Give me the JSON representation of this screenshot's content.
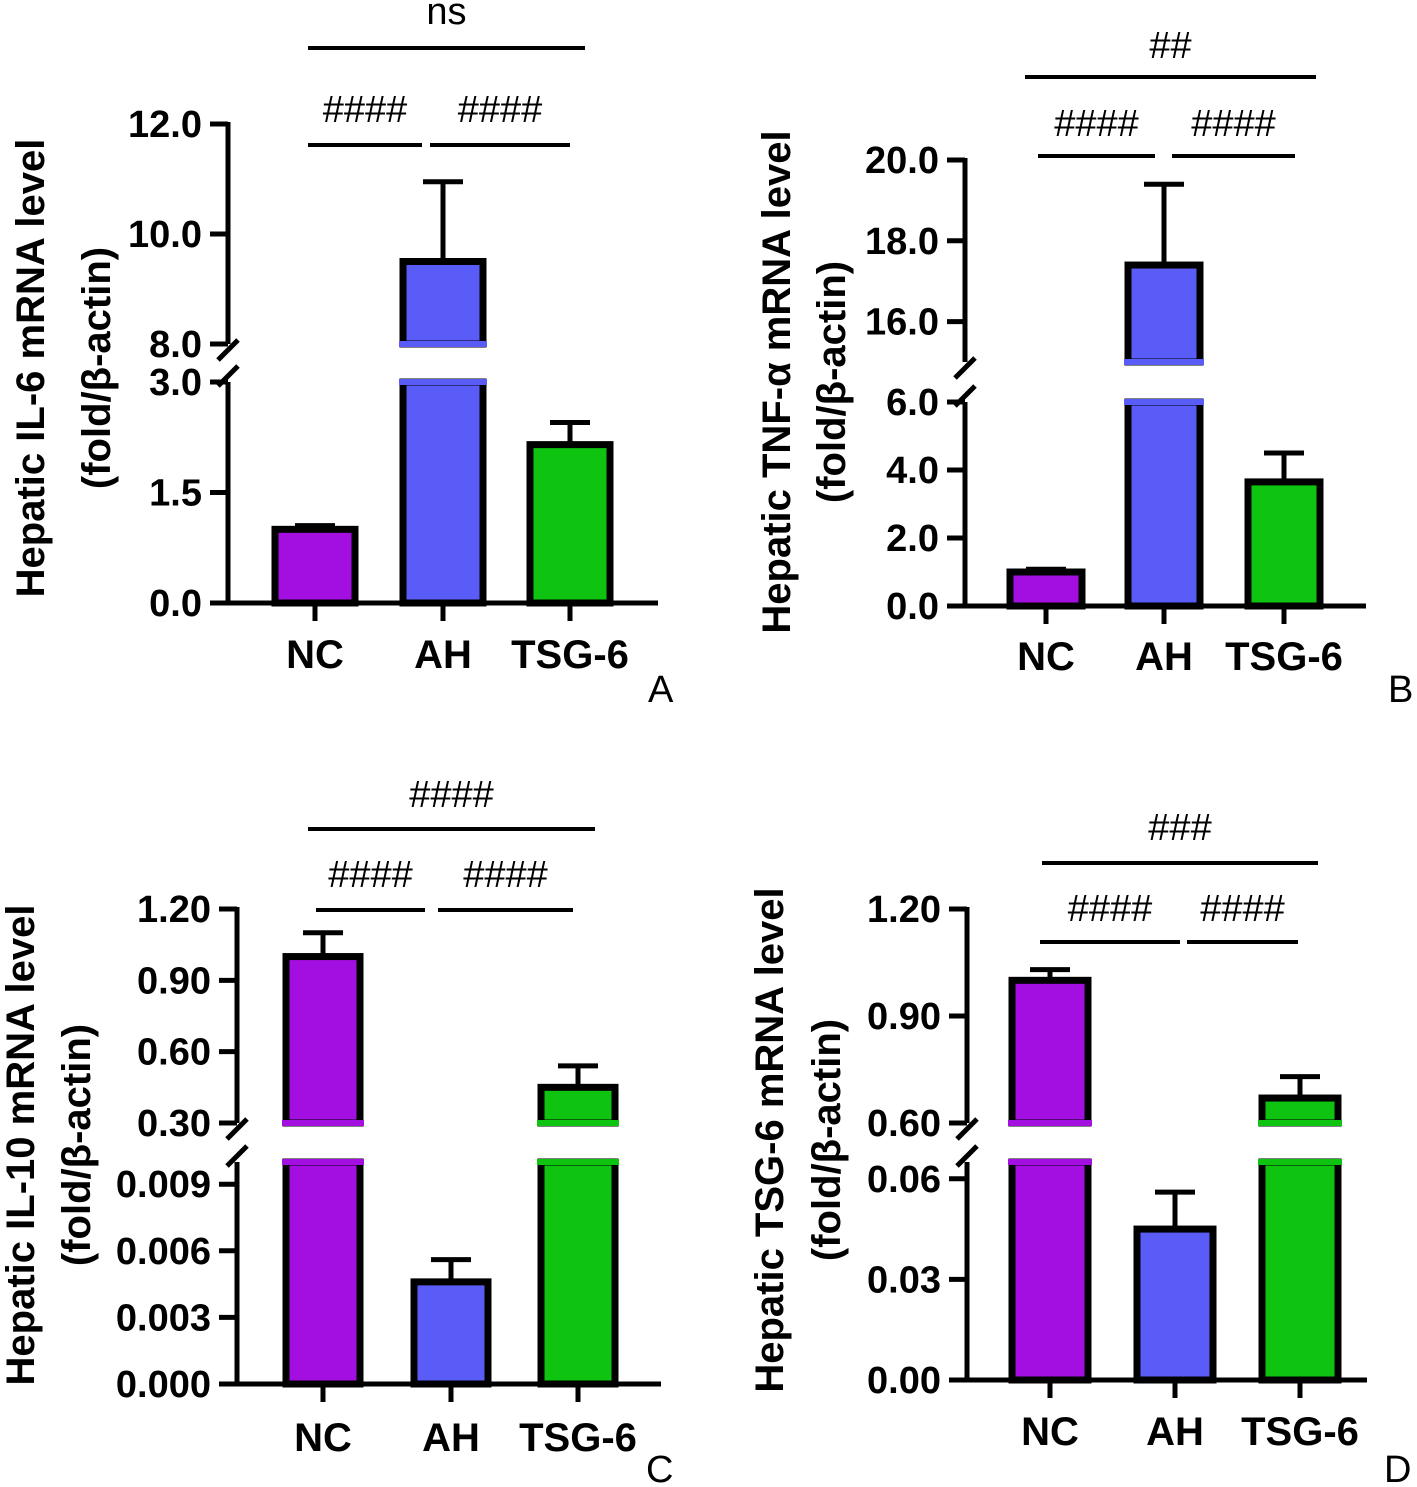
{
  "chart_data": [
    {
      "panel": "A",
      "type": "bar",
      "categories": [
        "NC",
        "AH",
        "TSG-6"
      ],
      "values": [
        1.0,
        9.5,
        2.15
      ],
      "errors": [
        0.05,
        1.45,
        0.3
      ],
      "colors": [
        "#a30fe0",
        "#5a5cf7",
        "#0fc410"
      ],
      "ylabel_line1": "Hepatic IL-6 mRNA level",
      "ylabel_line2": "(fold/β-actin)",
      "axis_break": [
        3.0,
        8.0
      ],
      "ylim_lower": [
        0,
        3.0
      ],
      "ylim_upper": [
        8.0,
        12.0
      ],
      "yticks_lower": [
        "0.0",
        "1.5",
        "3.0"
      ],
      "yticks_upper": [
        "8.0",
        "10.0",
        "12.0"
      ],
      "significance": [
        {
          "from": "NC",
          "to": "AH",
          "label": "####"
        },
        {
          "from": "AH",
          "to": "TSG-6",
          "label": "####"
        },
        {
          "from": "NC",
          "to": "TSG-6",
          "label": "ns"
        }
      ]
    },
    {
      "panel": "B",
      "type": "bar",
      "categories": [
        "NC",
        "AH",
        "TSG-6"
      ],
      "values": [
        1.0,
        17.4,
        3.65
      ],
      "errors": [
        0.08,
        2.0,
        0.85
      ],
      "colors": [
        "#a30fe0",
        "#5a5cf7",
        "#0fc410"
      ],
      "ylabel_line1": "Hepatic TNF-α mRNA level",
      "ylabel_line2": "(fold/β-actin)",
      "axis_break": [
        6.0,
        15.0
      ],
      "ylim_lower": [
        0,
        6.0
      ],
      "ylim_upper": [
        15.0,
        20.0
      ],
      "yticks_lower": [
        "0.0",
        "2.0",
        "4.0",
        "6.0"
      ],
      "yticks_upper": [
        "16.0",
        "18.0",
        "20.0"
      ],
      "significance": [
        {
          "from": "NC",
          "to": "AH",
          "label": "####"
        },
        {
          "from": "AH",
          "to": "TSG-6",
          "label": "####"
        },
        {
          "from": "NC",
          "to": "TSG-6",
          "label": "##"
        }
      ]
    },
    {
      "panel": "C",
      "type": "bar",
      "categories": [
        "NC",
        "AH",
        "TSG-6"
      ],
      "values": [
        1.0,
        0.0046,
        0.45
      ],
      "errors": [
        0.1,
        0.001,
        0.09
      ],
      "colors": [
        "#a30fe0",
        "#5a5cf7",
        "#0fc410"
      ],
      "ylabel_line1": "Hepatic IL-10 mRNA level",
      "ylabel_line2": "(fold/β-actin)",
      "axis_break": [
        0.01,
        0.3
      ],
      "ylim_lower": [
        0,
        0.01
      ],
      "ylim_upper": [
        0.3,
        1.2
      ],
      "yticks_lower": [
        "0.000",
        "0.003",
        "0.006",
        "0.009"
      ],
      "yticks_upper": [
        "0.30",
        "0.60",
        "0.90",
        "1.20"
      ],
      "significance": [
        {
          "from": "NC",
          "to": "AH",
          "label": "####"
        },
        {
          "from": "AH",
          "to": "TSG-6",
          "label": "####"
        },
        {
          "from": "NC",
          "to": "TSG-6",
          "label": "####"
        }
      ]
    },
    {
      "panel": "D",
      "type": "bar",
      "categories": [
        "NC",
        "AH",
        "TSG-6"
      ],
      "values": [
        1.0,
        0.045,
        0.67
      ],
      "errors": [
        0.03,
        0.011,
        0.06
      ],
      "colors": [
        "#a30fe0",
        "#5a5cf7",
        "#0fc410"
      ],
      "ylabel_line1": "Hepatic TSG-6 mRNA level",
      "ylabel_line2": "(fold/β-actin)",
      "axis_break": [
        0.065,
        0.6
      ],
      "ylim_lower": [
        0,
        0.065
      ],
      "ylim_upper": [
        0.6,
        1.2
      ],
      "yticks_lower": [
        "0.00",
        "0.03",
        "0.06"
      ],
      "yticks_upper": [
        "0.60",
        "0.90",
        "1.20"
      ],
      "significance": [
        {
          "from": "NC",
          "to": "AH",
          "label": "####"
        },
        {
          "from": "AH",
          "to": "TSG-6",
          "label": "####"
        },
        {
          "from": "NC",
          "to": "TSG-6",
          "label": "###"
        }
      ]
    }
  ]
}
